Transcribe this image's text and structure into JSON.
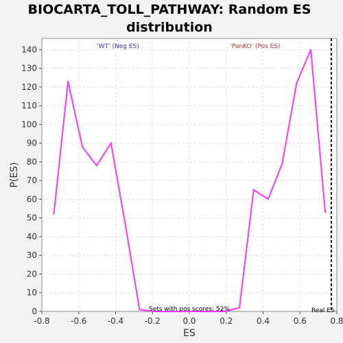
{
  "chart_data": {
    "type": "line",
    "title_line1": "BIOCARTA_TOLL_PATHWAY: Random ES",
    "title_line2": "distribution",
    "xlabel": "ES",
    "ylabel": "P(ES)",
    "xlim": [
      -0.8,
      0.8
    ],
    "ylim": [
      0,
      146
    ],
    "x_ticks": [
      "-0.8",
      "-0.6",
      "-0.4",
      "-0.2",
      "0.0",
      "0.2",
      "0.4",
      "0.6",
      "0.8"
    ],
    "y_ticks": [
      "0",
      "10",
      "20",
      "30",
      "40",
      "50",
      "60",
      "70",
      "80",
      "90",
      "100",
      "110",
      "120",
      "130",
      "140"
    ],
    "grid": true,
    "series": [
      {
        "color": "#ff33ff",
        "x": [
          -0.735,
          -0.658,
          -0.58,
          -0.503,
          -0.425,
          -0.348,
          -0.27,
          -0.193,
          -0.116,
          -0.038,
          0.039,
          0.117,
          0.194,
          0.272,
          0.349,
          0.427,
          0.504,
          0.582,
          0.659,
          0.737
        ],
        "y": [
          52,
          123,
          88,
          78,
          90,
          47,
          1,
          0,
          0,
          0,
          0,
          0,
          0,
          2,
          65,
          60,
          79,
          122,
          140,
          53
        ]
      }
    ],
    "annotations": {
      "neg_label": "'WT' (Neg ES)",
      "neg_color": "#3333cc",
      "pos_label": "'PanKO' (Pos ES)",
      "pos_color": "#cc3333",
      "pos_scores": "Sets with pos scores: 52%",
      "real_es_label": "Real ES",
      "real_es_value": 0.77
    }
  }
}
